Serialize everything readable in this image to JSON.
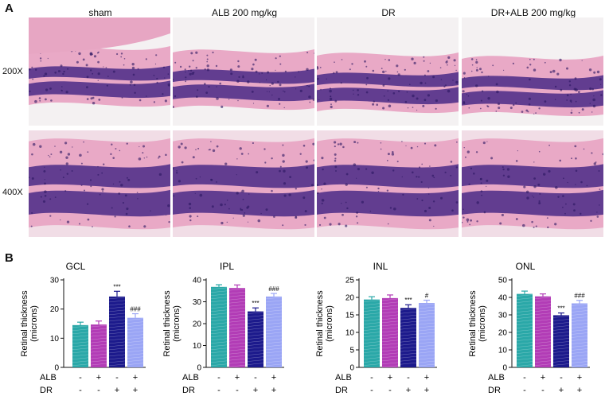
{
  "figure": {
    "panel_a": "A",
    "panel_b": "B",
    "columns": [
      "sham",
      "ALB 200 mg/kg",
      "DR",
      "DR+ALB 200 mg/kg"
    ],
    "rows": [
      "200X",
      "400X"
    ]
  },
  "colors": {
    "sham": "#2aa8a8",
    "alb": "#b23cb6",
    "dr": "#1c1a8c",
    "dr_alb": "#9aa5f5",
    "tissue_pink": "#e9a9c6",
    "nuclei_purple": "#4a2a86"
  },
  "chart_data": [
    {
      "type": "bar",
      "title": "GCL",
      "ylabel": "Retinal thickness (microns)",
      "ylim": [
        0,
        30
      ],
      "yticks": [
        0,
        10,
        20,
        30
      ],
      "values": [
        14.5,
        14.7,
        24.3,
        17.0
      ],
      "errors": [
        1.0,
        1.2,
        1.8,
        1.4
      ],
      "sig": [
        "",
        "",
        "***",
        "###"
      ],
      "factors": {
        "ALB": [
          "-",
          "+",
          "-",
          "+"
        ],
        "DR": [
          "-",
          "-",
          "+",
          "+"
        ]
      }
    },
    {
      "type": "bar",
      "title": "IPL",
      "ylabel": "Retinal thickness (microns)",
      "ylim": [
        0,
        40
      ],
      "yticks": [
        0,
        10,
        20,
        30,
        40
      ],
      "values": [
        36.8,
        36.3,
        25.6,
        32.4
      ],
      "errors": [
        1.0,
        1.4,
        1.6,
        1.4
      ],
      "sig": [
        "",
        "",
        "***",
        "###"
      ],
      "factors": {
        "ALB": [
          "-",
          "+",
          "-",
          "+"
        ],
        "DR": [
          "-",
          "-",
          "+",
          "+"
        ]
      }
    },
    {
      "type": "bar",
      "title": "INL",
      "ylabel": "Retinal thickness (microns)",
      "ylim": [
        0,
        25
      ],
      "yticks": [
        0,
        5,
        10,
        15,
        20,
        25
      ],
      "values": [
        19.4,
        19.8,
        17.0,
        18.4
      ],
      "errors": [
        0.8,
        0.9,
        0.9,
        0.8
      ],
      "sig": [
        "",
        "",
        "***",
        "#"
      ],
      "factors": {
        "ALB": [
          "-",
          "+",
          "-",
          "+"
        ],
        "DR": [
          "-",
          "-",
          "+",
          "+"
        ]
      }
    },
    {
      "type": "bar",
      "title": "ONL",
      "ylabel": "Retinal thickness (microns)",
      "ylim": [
        0,
        50
      ],
      "yticks": [
        0,
        10,
        20,
        30,
        40,
        50
      ],
      "values": [
        42.0,
        40.6,
        29.8,
        36.6
      ],
      "errors": [
        1.6,
        1.4,
        1.3,
        1.7
      ],
      "sig": [
        "",
        "",
        "***",
        "###"
      ],
      "factors": {
        "ALB": [
          "-",
          "+",
          "-",
          "+"
        ],
        "DR": [
          "-",
          "-",
          "+",
          "+"
        ]
      }
    }
  ]
}
